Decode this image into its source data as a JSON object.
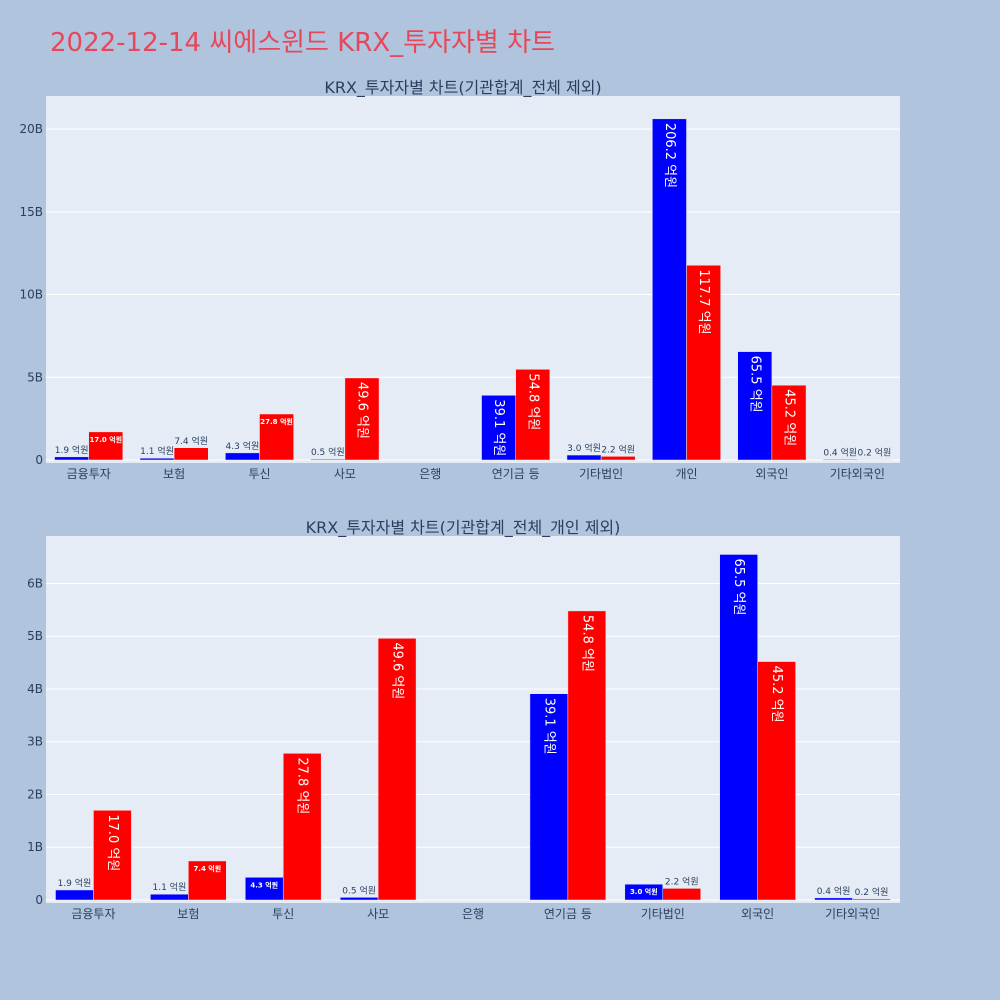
{
  "title": "2022-12-14 씨에스윈드 KRX_투자자별 차트",
  "colors": {
    "buy": "#0000ff",
    "sell": "#ff0000",
    "plot_bg": "#e5ecf6",
    "page_bg": "#b0c4de",
    "title": "#e8475a"
  },
  "chart_data": [
    {
      "type": "bar",
      "title": "KRX_투자자별 차트(기관합계_전체 제외)",
      "categories": [
        "금융투자",
        "보험",
        "투신",
        "사모",
        "은행",
        "연기금 등",
        "기타법인",
        "개인",
        "외국인",
        "기타외국인"
      ],
      "series": [
        {
          "values": [
            0.19,
            0.11,
            0.43,
            0.05,
            0,
            3.91,
            0.3,
            20.62,
            6.55,
            0.04
          ],
          "labels": [
            "1.9 억원",
            "1.1 억원",
            "4.3 억원",
            "0.5 억원",
            "",
            "39.1 억원",
            "3.0 억원",
            "206.2 억원",
            "65.5 억원",
            "0.4 억원"
          ]
        },
        {
          "values": [
            1.7,
            0.74,
            2.78,
            4.96,
            0,
            5.48,
            0.22,
            11.77,
            4.52,
            0.02
          ],
          "labels": [
            "17.0 억원",
            "7.4 억원",
            "27.8 억원",
            "49.6 억원",
            "",
            "54.8 억원",
            "2.2 억원",
            "117.7 억원",
            "45.2 억원",
            "0.2 억원"
          ]
        }
      ],
      "yunit": "B",
      "ylim": [
        0,
        22
      ],
      "yticks": [
        0,
        5,
        10,
        15,
        20
      ],
      "ytick_labels": [
        "0",
        "5B",
        "10B",
        "15B",
        "20B"
      ],
      "grid": true
    },
    {
      "type": "bar",
      "title": "KRX_투자자별 차트(기관합계_전체_개인 제외)",
      "categories": [
        "금융투자",
        "보험",
        "투신",
        "사모",
        "은행",
        "연기금 등",
        "기타법인",
        "외국인",
        "기타외국인"
      ],
      "series": [
        {
          "values": [
            0.19,
            0.11,
            0.43,
            0.05,
            0,
            3.91,
            0.3,
            6.55,
            0.04
          ],
          "labels": [
            "1.9 억원",
            "1.1 억원",
            "4.3 억원",
            "0.5 억원",
            "",
            "39.1 억원",
            "3.0 억원",
            "65.5 억원",
            "0.4 억원"
          ]
        },
        {
          "values": [
            1.7,
            0.74,
            2.78,
            4.96,
            0,
            5.48,
            0.22,
            4.52,
            0.02
          ],
          "labels": [
            "17.0 억원",
            "7.4 억원",
            "27.8 억원",
            "49.6 억원",
            "",
            "54.8 억원",
            "2.2 억원",
            "45.2 억원",
            "0.2 억원"
          ]
        }
      ],
      "yunit": "B",
      "ylim": [
        0,
        6.9
      ],
      "yticks": [
        0,
        1,
        2,
        3,
        4,
        5,
        6
      ],
      "ytick_labels": [
        "0",
        "1B",
        "2B",
        "3B",
        "4B",
        "5B",
        "6B"
      ],
      "grid": true
    }
  ]
}
